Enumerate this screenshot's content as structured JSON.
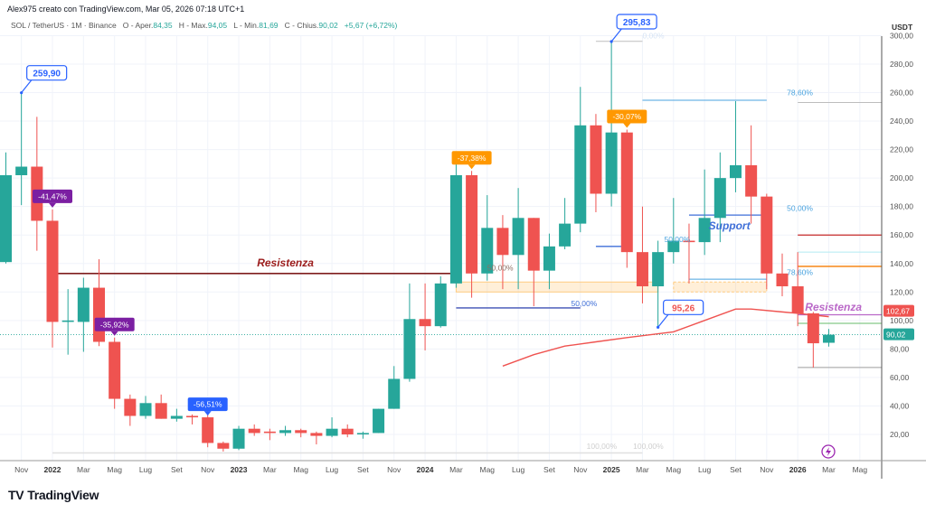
{
  "credit": "Alex975 creato con TradingView.com, Mar 05, 2026 07:18 UTC+1",
  "legend": {
    "symbol": "SOL / TetherUS · 1M · Binance",
    "open_label": "O - Aper.",
    "open": "84,35",
    "high_label": "H - Max.",
    "high": "94,05",
    "low_label": "L - Min.",
    "low": "81,69",
    "close_label": "C - Chius.",
    "close": "90,02",
    "change": "+5,67 (+6,72%)"
  },
  "logo": "TradingView",
  "chart_data": {
    "type": "candlestick",
    "currency": "USDT",
    "ylim": [
      0,
      300
    ],
    "y_ticks": [
      "20,00",
      "40,00",
      "60,00",
      "80,00",
      "100,00",
      "120,00",
      "140,00",
      "160,00",
      "180,00",
      "200,00",
      "220,00",
      "240,00",
      "260,00",
      "280,00",
      "300,00"
    ],
    "x_ticks": [
      {
        "m": "2021-11",
        "label": "Nov"
      },
      {
        "m": "2022-01",
        "label": "2022",
        "bold": true
      },
      {
        "m": "2022-03",
        "label": "Mar"
      },
      {
        "m": "2022-05",
        "label": "Mag"
      },
      {
        "m": "2022-07",
        "label": "Lug"
      },
      {
        "m": "2022-09",
        "label": "Set"
      },
      {
        "m": "2022-11",
        "label": "Nov"
      },
      {
        "m": "2023-01",
        "label": "2023",
        "bold": true
      },
      {
        "m": "2023-03",
        "label": "Mar"
      },
      {
        "m": "2023-05",
        "label": "Mag"
      },
      {
        "m": "2023-07",
        "label": "Lug"
      },
      {
        "m": "2023-09",
        "label": "Set"
      },
      {
        "m": "2023-11",
        "label": "Nov"
      },
      {
        "m": "2024-01",
        "label": "2024",
        "bold": true
      },
      {
        "m": "2024-03",
        "label": "Mar"
      },
      {
        "m": "2024-05",
        "label": "Mag"
      },
      {
        "m": "2024-07",
        "label": "Lug"
      },
      {
        "m": "2024-09",
        "label": "Set"
      },
      {
        "m": "2024-11",
        "label": "Nov"
      },
      {
        "m": "2025-01",
        "label": "2025",
        "bold": true
      },
      {
        "m": "2025-03",
        "label": "Mar"
      },
      {
        "m": "2025-05",
        "label": "Mag"
      },
      {
        "m": "2025-07",
        "label": "Lug"
      },
      {
        "m": "2025-09",
        "label": "Set"
      },
      {
        "m": "2025-11",
        "label": "Nov"
      },
      {
        "m": "2026-01",
        "label": "2026",
        "bold": true
      },
      {
        "m": "2026-03",
        "label": "Mar"
      },
      {
        "m": "2026-05",
        "label": "Mag"
      }
    ],
    "colors": {
      "up": "#26a69a",
      "down": "#ef5350"
    },
    "candles": [
      [
        "2021-10",
        141,
        218,
        140,
        202
      ],
      [
        "2021-11",
        202,
        259.9,
        181,
        208
      ],
      [
        "2021-12",
        208,
        243,
        149,
        170
      ],
      [
        "2022-01",
        170,
        178,
        81,
        99
      ],
      [
        "2022-02",
        99,
        122,
        76,
        100
      ],
      [
        "2022-03",
        99,
        130,
        78,
        123
      ],
      [
        "2022-04",
        123,
        143,
        82,
        85
      ],
      [
        "2022-05",
        85,
        88,
        38,
        45
      ],
      [
        "2022-06",
        45,
        48,
        26,
        33
      ],
      [
        "2022-07",
        33,
        47,
        31,
        42
      ],
      [
        "2022-08",
        42,
        48,
        31,
        31
      ],
      [
        "2022-09",
        31,
        38,
        29,
        33
      ],
      [
        "2022-10",
        33,
        34,
        27,
        32
      ],
      [
        "2022-11",
        32,
        40,
        11,
        14
      ],
      [
        "2022-12",
        14,
        15,
        8,
        10
      ],
      [
        "2023-01",
        10,
        26,
        9,
        24
      ],
      [
        "2023-02",
        24,
        27,
        19,
        21
      ],
      [
        "2023-03",
        22,
        24,
        16,
        21
      ],
      [
        "2023-04",
        21,
        26,
        19,
        23
      ],
      [
        "2023-05",
        23,
        24,
        18,
        21
      ],
      [
        "2023-06",
        21,
        22,
        13,
        19
      ],
      [
        "2023-07",
        19,
        32,
        18,
        24
      ],
      [
        "2023-08",
        24,
        27,
        18,
        20
      ],
      [
        "2023-09",
        20,
        22,
        17,
        21
      ],
      [
        "2023-10",
        21,
        38,
        21,
        38
      ],
      [
        "2023-11",
        38,
        68,
        38,
        59
      ],
      [
        "2023-12",
        59,
        126,
        57,
        101
      ],
      [
        "2024-01",
        101,
        126,
        79,
        96
      ],
      [
        "2024-02",
        96,
        131,
        95,
        126
      ],
      [
        "2024-03",
        126,
        210,
        123,
        202
      ],
      [
        "2024-04",
        202,
        205,
        116,
        133
      ],
      [
        "2024-05",
        133,
        188,
        128,
        165
      ],
      [
        "2024-06",
        165,
        174,
        122,
        146
      ],
      [
        "2024-07",
        146,
        193,
        122,
        172
      ],
      [
        "2024-08",
        172,
        172,
        110,
        135
      ],
      [
        "2024-09",
        135,
        161,
        122,
        152
      ],
      [
        "2024-10",
        152,
        186,
        150,
        168
      ],
      [
        "2024-11",
        168,
        264,
        162,
        237
      ],
      [
        "2024-12",
        237,
        245,
        176,
        189
      ],
      [
        "2025-01",
        189,
        295.83,
        180,
        232
      ],
      [
        "2025-02",
        232,
        234,
        137,
        148
      ],
      [
        "2025-03",
        148,
        180,
        112,
        124
      ],
      [
        "2025-04",
        124,
        156,
        95.26,
        148
      ],
      [
        "2025-05",
        148,
        186,
        140,
        156
      ],
      [
        "2025-06",
        156,
        168,
        126,
        155
      ],
      [
        "2025-07",
        155,
        206,
        146,
        172
      ],
      [
        "2025-08",
        172,
        218,
        155,
        200
      ],
      [
        "2025-09",
        200,
        254,
        190,
        209
      ],
      [
        "2025-10",
        209,
        237,
        168,
        187
      ],
      [
        "2025-11",
        187,
        189,
        122,
        133
      ],
      [
        "2025-12",
        133,
        147,
        117,
        124
      ],
      [
        "2026-01",
        124,
        148,
        96,
        105
      ],
      [
        "2026-02",
        105,
        106,
        67,
        84
      ],
      [
        "2026-03",
        84.35,
        94.05,
        81.69,
        90.02
      ]
    ],
    "moving_average": {
      "color": "#ef5350",
      "points": [
        [
          "2024-06",
          68
        ],
        [
          "2024-08",
          76
        ],
        [
          "2024-10",
          82
        ],
        [
          "2024-12",
          85
        ],
        [
          "2025-02",
          88
        ],
        [
          "2025-05",
          92
        ],
        [
          "2025-07",
          100
        ],
        [
          "2025-09",
          108
        ],
        [
          "2025-10",
          108
        ],
        [
          "2025-12",
          106
        ],
        [
          "2026-01",
          105
        ],
        [
          "2026-03",
          102.67
        ]
      ]
    },
    "hlines": [
      {
        "from": "2022-01",
        "to": "2024-03",
        "price": 133,
        "color": "#7f1d1d",
        "width": 1.6
      },
      {
        "from": "2024-03",
        "to": "2024-11",
        "price": 108.8,
        "color": "#3f51b5",
        "width": 1.3
      },
      {
        "from": "2024-12",
        "to": "2025-03",
        "price": 296,
        "color": "#bdbdbd",
        "width": 1
      },
      {
        "from": "2025-03",
        "to": "2025-11",
        "price": 254.6,
        "color": "#4aa3df",
        "width": 1
      },
      {
        "from": "2024-12",
        "to": "2025-02",
        "price": 152,
        "color": "#3f6fd8",
        "width": 1.3
      },
      {
        "from": "2025-06",
        "to": "2025-11",
        "price": 174,
        "color": "#3f6fd8",
        "width": 1.3
      },
      {
        "from": "2025-06",
        "to": "2025-11",
        "price": 129,
        "color": "#4aa3df",
        "width": 1
      },
      {
        "from": "2026-01",
        "to": "end",
        "price": 253,
        "color": "#bdbdbd",
        "width": 1
      },
      {
        "from": "2026-01",
        "to": "end",
        "price": 160,
        "color": "#c62828",
        "width": 1.3
      },
      {
        "from": "2026-01",
        "to": "end",
        "price": 148,
        "color": "#b2ebf2",
        "width": 1
      },
      {
        "from": "2026-01",
        "to": "end",
        "price": 138,
        "color": "#f57c00",
        "width": 1.3
      },
      {
        "from": "2026-01",
        "to": "end",
        "price": 104,
        "color": "#ba68c8",
        "width": 1.3
      },
      {
        "from": "2026-01",
        "to": "end",
        "price": 98,
        "color": "#66bb6a",
        "width": 1
      },
      {
        "from": "2026-01",
        "to": "end",
        "price": 67,
        "color": "#9e9e9e",
        "width": 1
      },
      {
        "from": "2022-01",
        "to": "2025-03",
        "price": 7,
        "color": "#e0e0e0",
        "width": 1.5
      }
    ],
    "zones": [
      {
        "from": "2024-03",
        "to": "2025-04",
        "low": 120,
        "high": 127,
        "dashed": false
      },
      {
        "from": "2025-05",
        "to": "2025-11",
        "low": 120,
        "high": 127,
        "dashed": true
      }
    ],
    "current_price": {
      "value": 90.02,
      "label": "90,02",
      "color": "#26a69a"
    },
    "ma_price": {
      "value": 102.67,
      "label": "102,67",
      "color": "#ef5350"
    },
    "texts": [
      {
        "text": "Resistenza",
        "m": "2023-04",
        "price": 138,
        "color": "#9b1c1c",
        "style": "big"
      },
      {
        "text": "Support",
        "m": "2025-08.6",
        "price": 164,
        "color": "#3f6fd8",
        "style": "big"
      },
      {
        "text": "Resistenza",
        "m": "2026-03.3",
        "price": 107,
        "color": "#ba68c8",
        "style": "big"
      },
      {
        "text": "50,00%",
        "m": "2024-05",
        "price": 135,
        "color": "#8d6e63",
        "style": "small"
      },
      {
        "text": "50,00%",
        "m": "2024-10.4",
        "price": 110,
        "color": "#3f6fd8",
        "style": "small"
      },
      {
        "text": "50,00%",
        "m": "2025-04.4",
        "price": 155,
        "color": "#4aa3df",
        "style": "small"
      },
      {
        "text": "50,00%",
        "m": "2025-12.3",
        "price": 177,
        "color": "#4aa3df",
        "style": "small"
      },
      {
        "text": "78,60%",
        "m": "2025-12.3",
        "price": 258,
        "color": "#4aa3df",
        "style": "small"
      },
      {
        "text": "78,60%",
        "m": "2025-12.3",
        "price": 132,
        "color": "#4aa3df",
        "style": "small"
      },
      {
        "text": "0,00%",
        "m": "2025-03",
        "price": 298,
        "color": "#d6e4f5",
        "style": "small"
      },
      {
        "text": "100,00%",
        "m": "2024-11.4",
        "price": 10,
        "color": "#cfcfcf",
        "style": "small"
      },
      {
        "text": "100,00%",
        "m": "2025-02.4",
        "price": 10,
        "color": "#cfcfcf",
        "style": "small"
      }
    ],
    "callouts": [
      {
        "text": "259,90",
        "m": "2021-11",
        "price": 259.9,
        "color": "#2962ff"
      },
      {
        "text": "295,83",
        "m": "2025-01",
        "price": 295.83,
        "color": "#2962ff"
      },
      {
        "text": "95,26",
        "m": "2025-04",
        "price": 95.26,
        "color": "#ef5350",
        "border": "#2962ff"
      }
    ],
    "pct_labels": [
      {
        "text": "-41,47%",
        "m": "2022-01",
        "price": 178,
        "color": "#7b1fa2"
      },
      {
        "text": "-35,92%",
        "m": "2022-05",
        "price": 88,
        "color": "#7b1fa2"
      },
      {
        "text": "-56,51%",
        "m": "2022-11",
        "price": 32,
        "color": "#2962ff"
      },
      {
        "text": "-37,38%",
        "m": "2024-04",
        "price": 205,
        "color": "#ff9800"
      },
      {
        "text": "-30,07%",
        "m": "2025-02",
        "price": 234,
        "color": "#ff9800"
      }
    ]
  }
}
